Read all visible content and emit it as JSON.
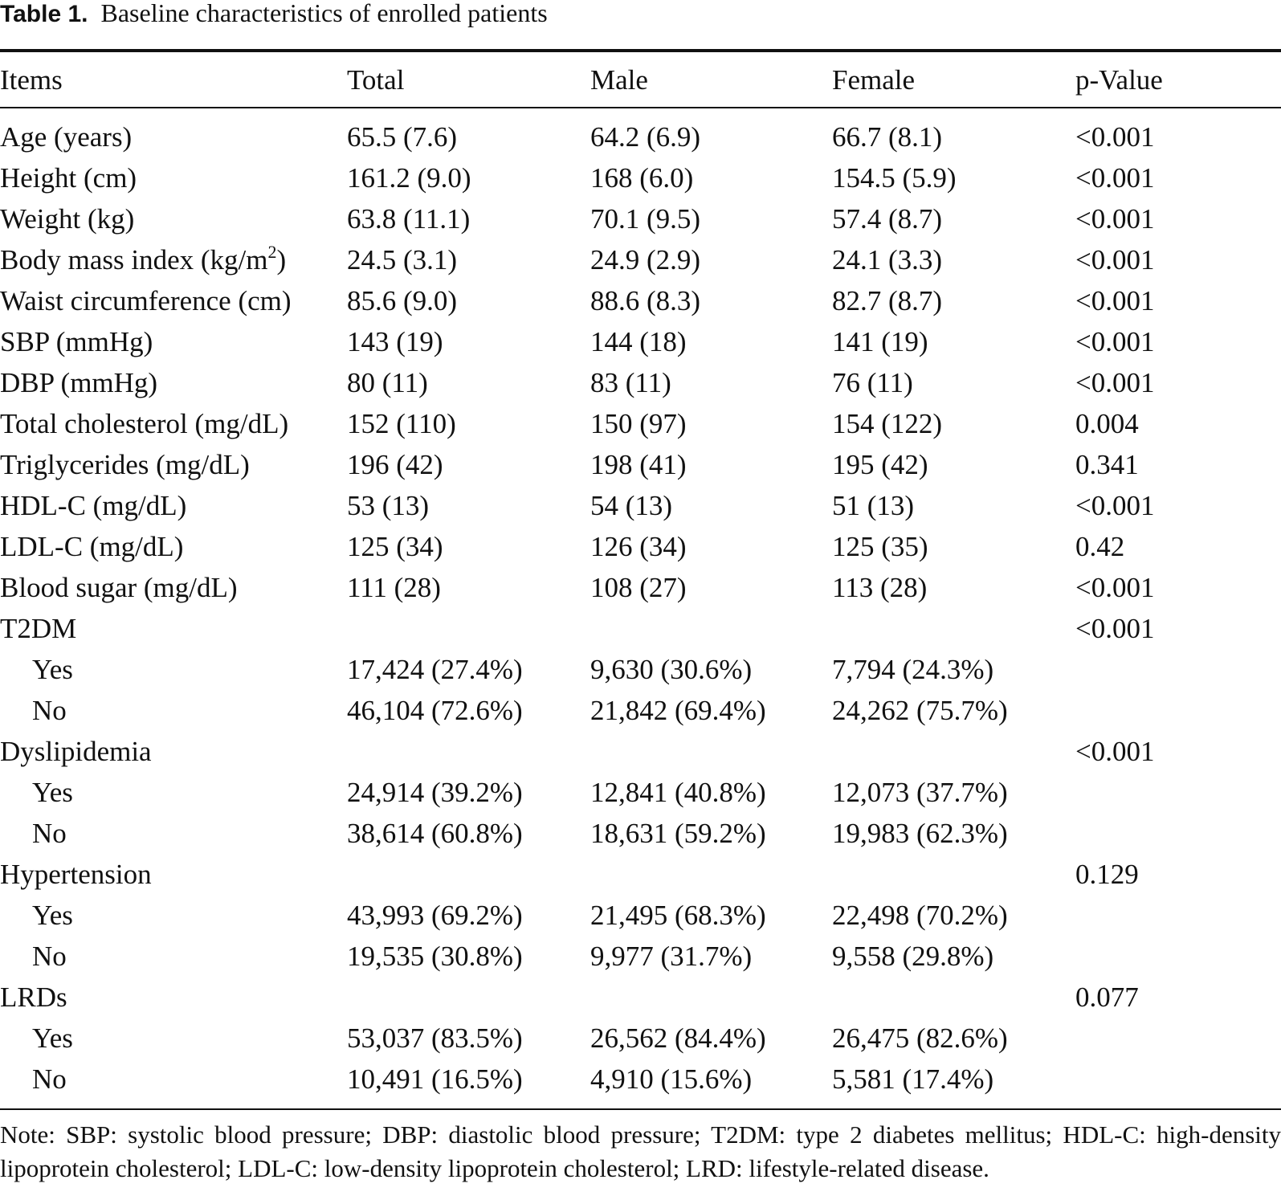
{
  "table": {
    "label": "Table 1.",
    "title": "Baseline characteristics of enrolled patients",
    "columns": [
      "Items",
      "Total",
      "Male",
      "Female",
      "p-Value"
    ],
    "rows": [
      {
        "item": "Age (years)",
        "total": "65.5 (7.6)",
        "male": "64.2 (6.9)",
        "female": "66.7 (8.1)",
        "p": "<0.001"
      },
      {
        "item": "Height (cm)",
        "total": "161.2 (9.0)",
        "male": "168 (6.0)",
        "female": "154.5 (5.9)",
        "p": "<0.001"
      },
      {
        "item": "Weight (kg)",
        "total": "63.8 (11.1)",
        "male": "70.1 (9.5)",
        "female": "57.4 (8.7)",
        "p": "<0.001"
      },
      {
        "item": "Body mass index (kg/m",
        "item_sup": "2",
        "item_suffix": ")",
        "total": "24.5 (3.1)",
        "male": "24.9 (2.9)",
        "female": "24.1 (3.3)",
        "p": "<0.001"
      },
      {
        "item": "Waist circumference (cm)",
        "total": "85.6 (9.0)",
        "male": "88.6 (8.3)",
        "female": "82.7 (8.7)",
        "p": "<0.001"
      },
      {
        "item": "SBP (mmHg)",
        "total": "143 (19)",
        "male": "144 (18)",
        "female": "141 (19)",
        "p": "<0.001"
      },
      {
        "item": "DBP (mmHg)",
        "total": "80 (11)",
        "male": "83 (11)",
        "female": "76 (11)",
        "p": "<0.001"
      },
      {
        "item": "Total cholesterol (mg/dL)",
        "total": "152 (110)",
        "male": "150 (97)",
        "female": "154 (122)",
        "p": "0.004"
      },
      {
        "item": "Triglycerides (mg/dL)",
        "total": "196 (42)",
        "male": "198 (41)",
        "female": "195 (42)",
        "p": "0.341"
      },
      {
        "item": "HDL-C (mg/dL)",
        "total": "53 (13)",
        "male": "54 (13)",
        "female": "51 (13)",
        "p": "<0.001"
      },
      {
        "item": "LDL-C (mg/dL)",
        "total": "125 (34)",
        "male": "126 (34)",
        "female": "125 (35)",
        "p": "0.42"
      },
      {
        "item": "Blood sugar (mg/dL)",
        "total": "111 (28)",
        "male": "108 (27)",
        "female": "113 (28)",
        "p": "<0.001"
      },
      {
        "item": "T2DM",
        "total": "",
        "male": "",
        "female": "",
        "p": "<0.001"
      },
      {
        "item": "Yes",
        "sub": true,
        "total": "17,424 (27.4%)",
        "male": "9,630 (30.6%)",
        "female": "7,794 (24.3%)",
        "p": ""
      },
      {
        "item": "No",
        "sub": true,
        "total": "46,104 (72.6%)",
        "male": "21,842 (69.4%)",
        "female": "24,262 (75.7%)",
        "p": ""
      },
      {
        "item": "Dyslipidemia",
        "total": "",
        "male": "",
        "female": "",
        "p": "<0.001"
      },
      {
        "item": "Yes",
        "sub": true,
        "total": "24,914 (39.2%)",
        "male": "12,841 (40.8%)",
        "female": "12,073 (37.7%)",
        "p": ""
      },
      {
        "item": "No",
        "sub": true,
        "total": "38,614 (60.8%)",
        "male": "18,631 (59.2%)",
        "female": "19,983 (62.3%)",
        "p": ""
      },
      {
        "item": "Hypertension",
        "total": "",
        "male": "",
        "female": "",
        "p": "0.129"
      },
      {
        "item": "Yes",
        "sub": true,
        "total": "43,993 (69.2%)",
        "male": "21,495 (68.3%)",
        "female": "22,498 (70.2%)",
        "p": ""
      },
      {
        "item": "No",
        "sub": true,
        "total": "19,535 (30.8%)",
        "male": "9,977 (31.7%)",
        "female": "9,558 (29.8%)",
        "p": ""
      },
      {
        "item": "LRDs",
        "total": "",
        "male": "",
        "female": "",
        "p": "0.077"
      },
      {
        "item": "Yes",
        "sub": true,
        "total": "53,037 (83.5%)",
        "male": "26,562 (84.4%)",
        "female": "26,475 (82.6%)",
        "p": ""
      },
      {
        "item": "No",
        "sub": true,
        "total": "10,491 (16.5%)",
        "male": "4,910 (15.6%)",
        "female": "5,581 (17.4%)",
        "p": ""
      }
    ],
    "note": "Note: SBP: systolic blood pressure; DBP: diastolic blood pressure; T2DM: type 2 diabetes mellitus; HDL-C: high-density lipoprotein cholesterol; LDL-C: low-density lipoprotein cholesterol; LRD: lifestyle-related disease."
  }
}
